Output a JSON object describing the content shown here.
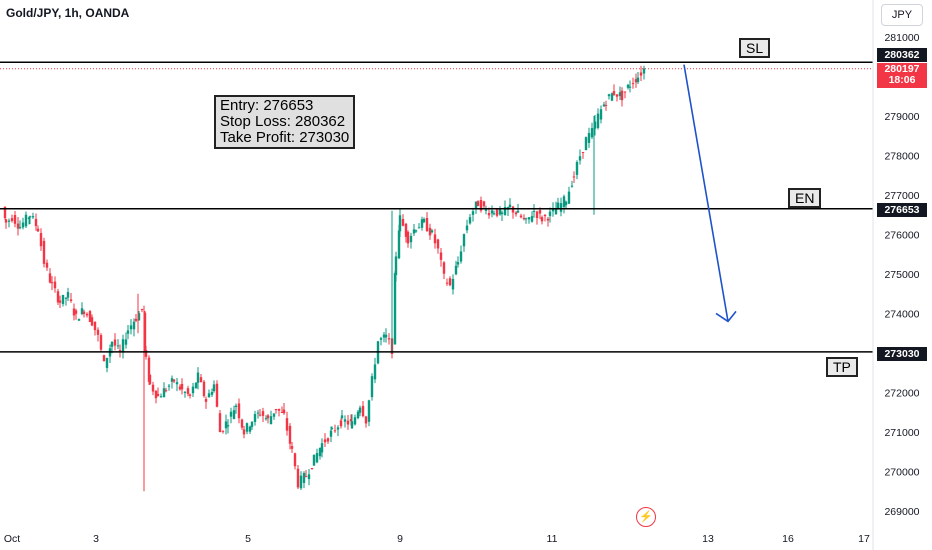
{
  "header": {
    "title": "Gold/JPY, 1h, OANDA",
    "currency_button": "JPY"
  },
  "annotation": {
    "entry": "Entry: 276653",
    "stop_loss": "Stop Loss: 280362",
    "take_profit": "Take Profit: 273030"
  },
  "tags": {
    "sl": "SL",
    "en": "EN",
    "tp": "TP"
  },
  "price_labels": {
    "sl": "280362",
    "entry": "276653",
    "tp": "273030",
    "current_price": "280197",
    "countdown": "18:06"
  },
  "colors": {
    "up": "#089981",
    "down": "#f23645",
    "line": "#000000",
    "arrow": "#1e53c9"
  },
  "chart_data": {
    "type": "candlestick",
    "title": "Gold/JPY, 1h, OANDA",
    "y_ticks": [
      269000,
      270000,
      271000,
      272000,
      273000,
      274000,
      275000,
      276000,
      277000,
      278000,
      279000,
      280000,
      281000
    ],
    "x_ticks": [
      "Oct",
      "3",
      "5",
      "9",
      "11",
      "13",
      "16",
      "17"
    ],
    "horizontal_lines": [
      {
        "name": "SL",
        "value": 280362
      },
      {
        "name": "EN",
        "value": 276653
      },
      {
        "name": "TP",
        "value": 273030
      }
    ],
    "current_price": 280197,
    "price_path": [
      [
        0,
        276700
      ],
      [
        4,
        276300
      ],
      [
        10,
        276450
      ],
      [
        18,
        276200
      ],
      [
        28,
        276500
      ],
      [
        36,
        276150
      ],
      [
        42,
        275300
      ],
      [
        50,
        274700
      ],
      [
        58,
        274300
      ],
      [
        66,
        274450
      ],
      [
        74,
        273900
      ],
      [
        82,
        274100
      ],
      [
        90,
        273800
      ],
      [
        96,
        273400
      ],
      [
        102,
        272700
      ],
      [
        110,
        273300
      ],
      [
        118,
        273000
      ],
      [
        126,
        273600
      ],
      [
        134,
        273900
      ],
      [
        140,
        274100
      ],
      [
        144,
        272800
      ],
      [
        148,
        272200
      ],
      [
        156,
        271900
      ],
      [
        164,
        272100
      ],
      [
        172,
        272300
      ],
      [
        180,
        272050
      ],
      [
        188,
        271900
      ],
      [
        196,
        272400
      ],
      [
        204,
        271800
      ],
      [
        212,
        272200
      ],
      [
        218,
        271000
      ],
      [
        226,
        271300
      ],
      [
        234,
        271700
      ],
      [
        242,
        271000
      ],
      [
        250,
        271300
      ],
      [
        258,
        271500
      ],
      [
        266,
        271300
      ],
      [
        274,
        271600
      ],
      [
        282,
        271400
      ],
      [
        290,
        270500
      ],
      [
        296,
        269700
      ],
      [
        304,
        269900
      ],
      [
        312,
        270300
      ],
      [
        320,
        270700
      ],
      [
        330,
        271000
      ],
      [
        340,
        271300
      ],
      [
        350,
        271200
      ],
      [
        358,
        271700
      ],
      [
        364,
        271300
      ],
      [
        370,
        272300
      ],
      [
        376,
        273300
      ],
      [
        384,
        273400
      ],
      [
        390,
        273100
      ],
      [
        394,
        275500
      ],
      [
        398,
        276400
      ],
      [
        406,
        275900
      ],
      [
        414,
        276200
      ],
      [
        422,
        276300
      ],
      [
        430,
        276000
      ],
      [
        436,
        275600
      ],
      [
        442,
        274900
      ],
      [
        448,
        274700
      ],
      [
        456,
        275300
      ],
      [
        462,
        276000
      ],
      [
        468,
        276500
      ],
      [
        476,
        276800
      ],
      [
        484,
        276600
      ],
      [
        492,
        276600
      ],
      [
        500,
        276500
      ],
      [
        508,
        276700
      ],
      [
        516,
        276500
      ],
      [
        524,
        276300
      ],
      [
        532,
        276600
      ],
      [
        540,
        276400
      ],
      [
        548,
        276500
      ],
      [
        556,
        276700
      ],
      [
        564,
        276900
      ],
      [
        572,
        277500
      ],
      [
        578,
        278000
      ],
      [
        584,
        278400
      ],
      [
        590,
        278600
      ],
      [
        596,
        279000
      ],
      [
        604,
        279400
      ],
      [
        612,
        279600
      ],
      [
        620,
        279500
      ],
      [
        628,
        279800
      ],
      [
        636,
        280000
      ],
      [
        642,
        280197
      ]
    ],
    "wicks": [
      {
        "x": 144,
        "low": 269500,
        "high": 274200
      },
      {
        "x": 138,
        "low": 273500,
        "high": 274500
      },
      {
        "x": 594,
        "low": 276500,
        "high": 279000
      },
      {
        "x": 392,
        "low": 273000,
        "high": 276600
      }
    ],
    "arrow": {
      "from": [
        684,
        280300
      ],
      "to": [
        728,
        273800
      ]
    }
  }
}
